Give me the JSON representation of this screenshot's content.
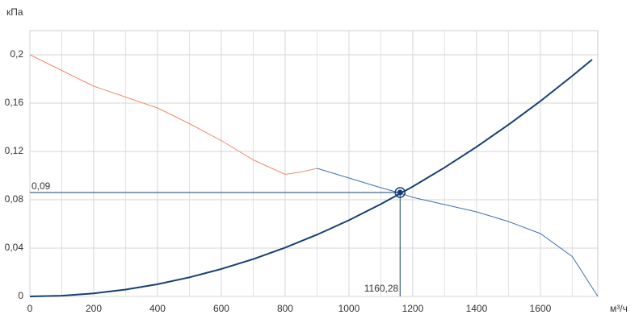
{
  "chart_data": {
    "type": "line",
    "y_label": "кПа",
    "x_label": "м³/ч",
    "xlim": [
      0,
      1780
    ],
    "ylim": [
      0,
      0.22
    ],
    "xticks": [
      0,
      200,
      400,
      600,
      800,
      1000,
      1200,
      1400,
      1600
    ],
    "xgrid_minor": [
      100,
      300,
      500,
      700,
      900,
      1100,
      1300,
      1500,
      1700
    ],
    "yticks": [
      0,
      {
        "value": 0.04,
        "label": "0,04"
      },
      {
        "value": 0.08,
        "label": "0,08"
      },
      {
        "value": 0.12,
        "label": "0,12"
      },
      {
        "value": 0.16,
        "label": "0,16"
      },
      {
        "value": 0.2,
        "label": "0,2"
      }
    ],
    "grid": true,
    "series": [
      {
        "color": "#f08a6e",
        "width": 1,
        "x": [
          0,
          100,
          200,
          300,
          400,
          500,
          600,
          700,
          800,
          850,
          900
        ],
        "values": [
          0.2,
          0.187,
          0.174,
          0.165,
          0.156,
          0.143,
          0.129,
          0.113,
          0.101,
          0.103,
          0.106
        ]
      },
      {
        "color": "#3f6fb0",
        "width": 1,
        "x": [
          900,
          1000,
          1100,
          1160,
          1200,
          1300,
          1400,
          1500,
          1600,
          1700,
          1780
        ],
        "values": [
          0.106,
          0.098,
          0.09,
          0.0855,
          0.082,
          0.076,
          0.07,
          0.062,
          0.052,
          0.033,
          0
        ]
      },
      {
        "color": "#153f73",
        "width": 2,
        "x": [
          0,
          100,
          200,
          300,
          400,
          500,
          600,
          700,
          800,
          900,
          1000,
          1100,
          1200,
          1300,
          1400,
          1500,
          1600,
          1700,
          1762
        ],
        "values": [
          0,
          0.0006,
          0.0025,
          0.0057,
          0.0101,
          0.0158,
          0.0227,
          0.0309,
          0.0404,
          0.0511,
          0.0631,
          0.0764,
          0.0909,
          0.1067,
          0.1238,
          0.1421,
          0.1616,
          0.1825,
          0.196
        ]
      }
    ],
    "operating_point": {
      "x": 1160.28,
      "x_label": "1160,28",
      "y": 0.086,
      "y_label": "0,09",
      "color": "#153f73"
    }
  }
}
